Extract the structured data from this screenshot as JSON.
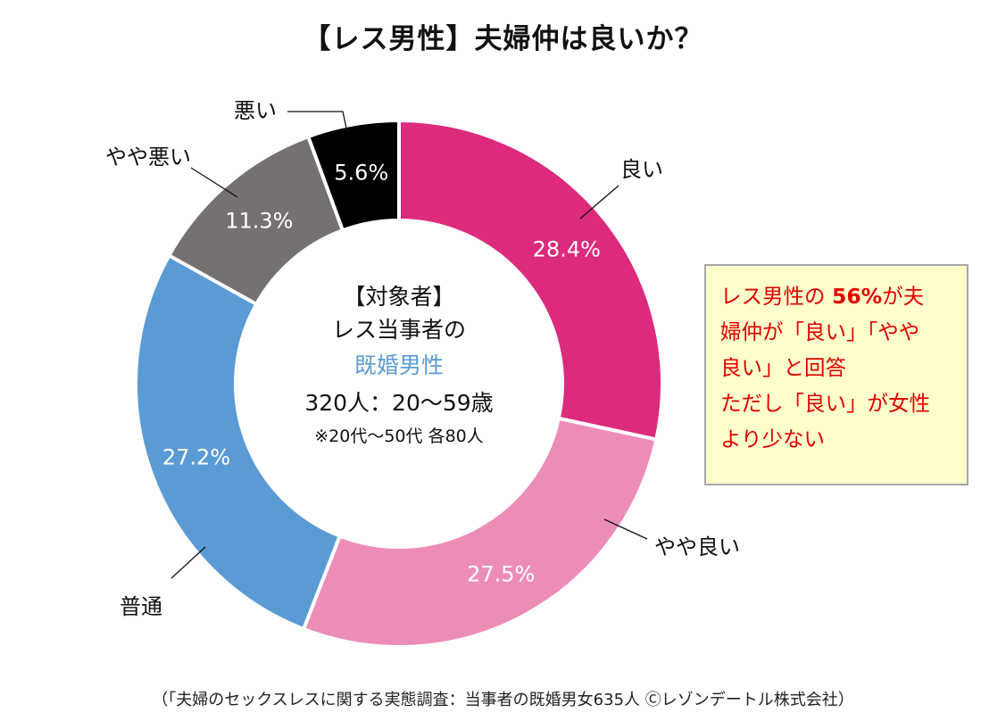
{
  "title": "【レス男性】夫婦仲は良いか？",
  "center_text": {
    "line1": "【対象者】",
    "line2": "レス当事者の",
    "line3": "既婚男性",
    "line4": "320人：20～59歳",
    "line5": "※20代～50代 各80人"
  },
  "note": {
    "part1": "レス男性の ",
    "bold": "56%",
    "part2": "が夫",
    "line2": "婦仲が「良い」「やや",
    "line3": "良い」と回答",
    "line4": "ただし「良い」が女性",
    "line5": "より少ない"
  },
  "source": "（「夫婦のセックスレスに関する実態調査：当事者の既婚男女635人 Ⓒレゾンデートル株式会社）",
  "chart_data": {
    "type": "pie",
    "variant": "donut",
    "categories": [
      "良い",
      "やや良い",
      "普通",
      "やや悪い",
      "悪い"
    ],
    "values": [
      28.4,
      27.5,
      27.2,
      11.3,
      5.6
    ],
    "value_labels": [
      "28.4%",
      "27.5%",
      "27.2%",
      "11.3%",
      "5.6%"
    ],
    "colors": [
      "#dc2a7c",
      "#ec8db8",
      "#5b9bd5",
      "#767171",
      "#000000"
    ],
    "start_angle": "12 o'clock",
    "direction": "clockwise"
  }
}
